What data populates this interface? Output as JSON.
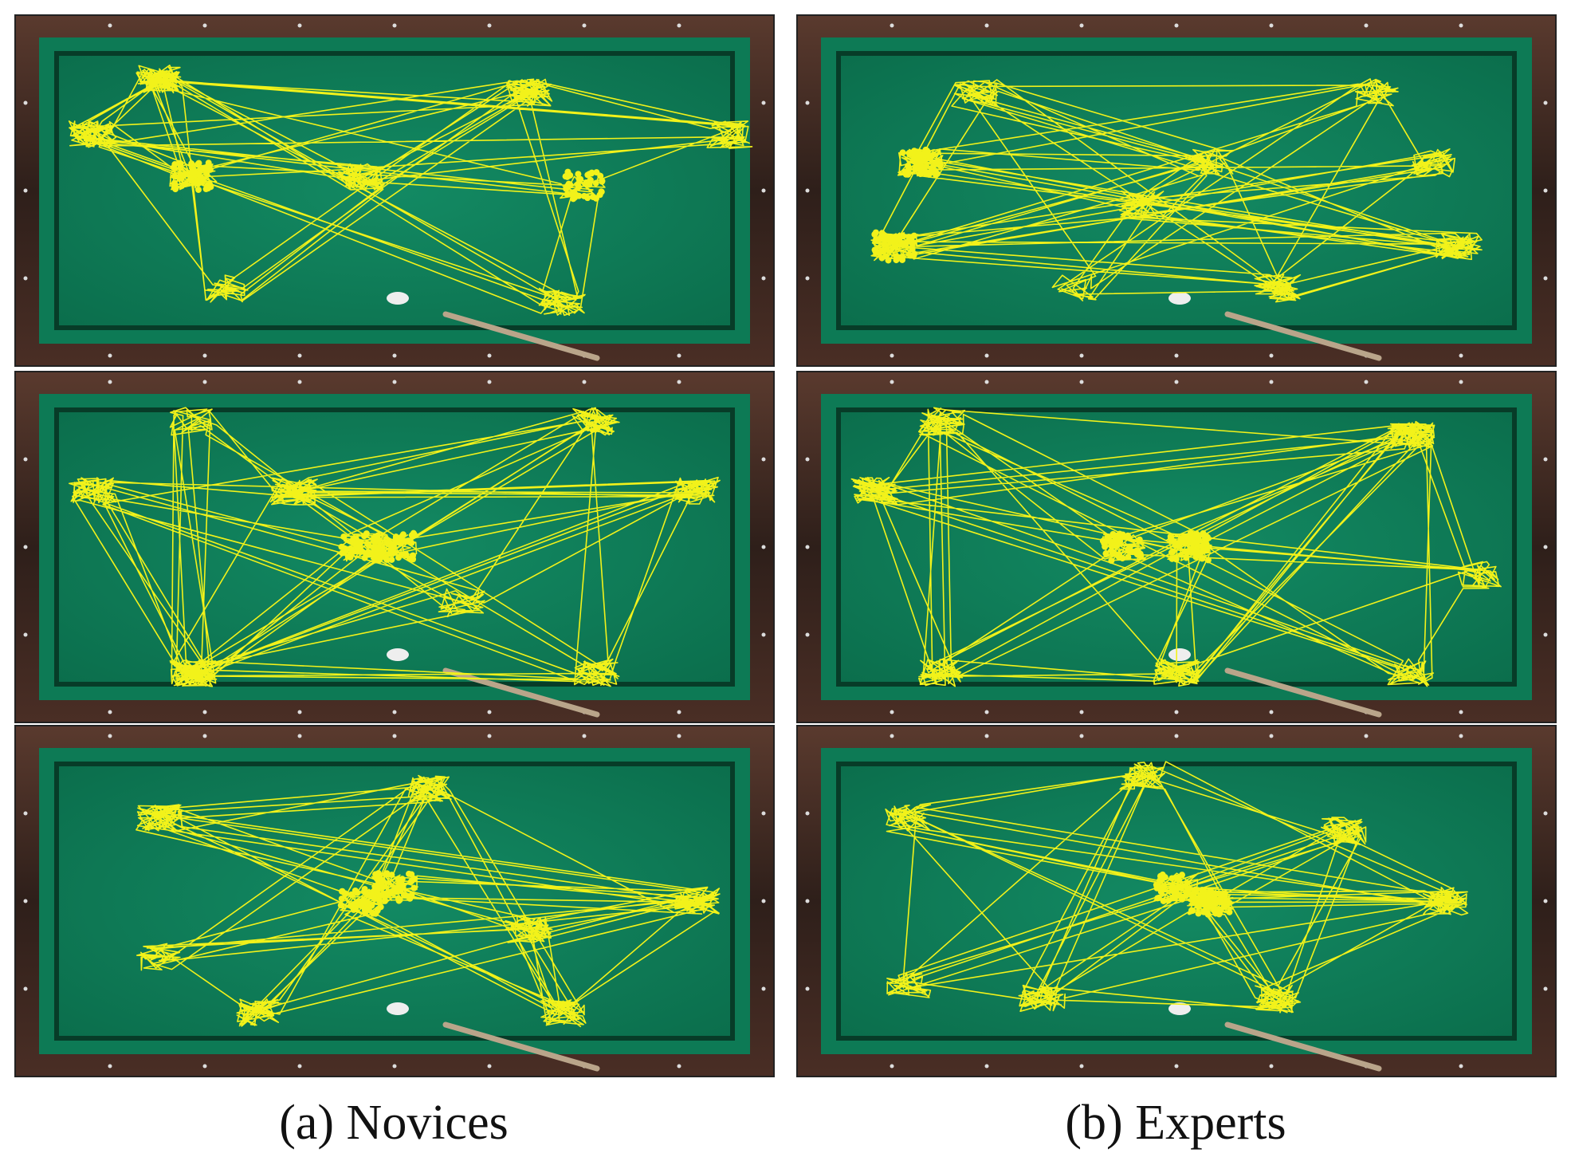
{
  "columns": [
    {
      "caption": "(a) Novices"
    },
    {
      "caption": "(b) Experts"
    }
  ]
}
